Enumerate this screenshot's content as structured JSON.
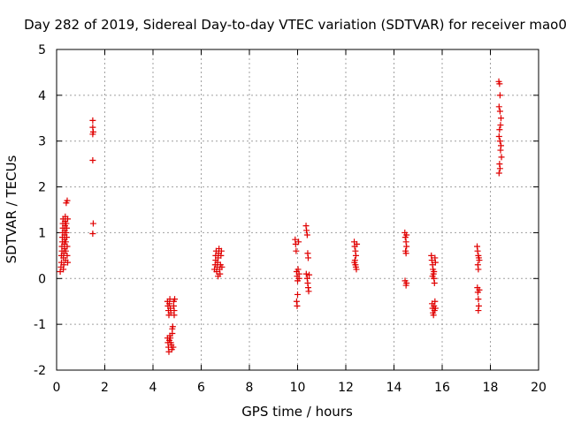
{
  "chart_data": {
    "type": "scatter",
    "title": "Day 282 of 2019, Sidereal Day-to-day VTEC variation (SDTVAR) for receiver mao0",
    "xlabel": "GPS time / hours",
    "ylabel": "SDTVAR / TECUs",
    "xlim": [
      0,
      20
    ],
    "ylim": [
      -2,
      5
    ],
    "xticks": [
      "0",
      "2",
      "4",
      "6",
      "8",
      "10",
      "12",
      "14",
      "16",
      "18",
      "20"
    ],
    "yticks": [
      "-2",
      "-1",
      "0",
      "1",
      "2",
      "3",
      "4",
      "5"
    ],
    "grid": true,
    "marker": "+",
    "color": "#e00000",
    "series": [
      {
        "name": "SDTVAR",
        "points": [
          [
            0.15,
            0.15
          ],
          [
            0.18,
            0.25
          ],
          [
            0.2,
            0.35
          ],
          [
            0.2,
            0.5
          ],
          [
            0.22,
            0.6
          ],
          [
            0.22,
            0.7
          ],
          [
            0.24,
            0.8
          ],
          [
            0.24,
            0.9
          ],
          [
            0.25,
            1.0
          ],
          [
            0.26,
            1.1
          ],
          [
            0.26,
            1.2
          ],
          [
            0.27,
            1.3
          ],
          [
            0.28,
            0.45
          ],
          [
            0.28,
            0.2
          ],
          [
            0.3,
            0.3
          ],
          [
            0.3,
            0.55
          ],
          [
            0.32,
            0.65
          ],
          [
            0.32,
            0.75
          ],
          [
            0.33,
            0.85
          ],
          [
            0.33,
            0.95
          ],
          [
            0.34,
            1.05
          ],
          [
            0.35,
            1.15
          ],
          [
            0.35,
            1.25
          ],
          [
            0.36,
            1.35
          ],
          [
            0.37,
            0.4
          ],
          [
            0.38,
            0.6
          ],
          [
            0.38,
            0.8
          ],
          [
            0.4,
            1.0
          ],
          [
            0.4,
            1.2
          ],
          [
            0.42,
            0.9
          ],
          [
            0.42,
            1.1
          ],
          [
            0.44,
            0.5
          ],
          [
            0.44,
            0.7
          ],
          [
            0.46,
            1.3
          ],
          [
            0.46,
            0.35
          ],
          [
            0.4,
            1.65
          ],
          [
            0.44,
            1.7
          ],
          [
            1.5,
            3.45
          ],
          [
            1.5,
            3.3
          ],
          [
            1.52,
            3.2
          ],
          [
            1.5,
            3.15
          ],
          [
            1.5,
            2.58
          ],
          [
            1.52,
            1.2
          ],
          [
            1.5,
            0.98
          ],
          [
            4.6,
            -1.3
          ],
          [
            4.62,
            -1.4
          ],
          [
            4.64,
            -1.5
          ],
          [
            4.66,
            -1.6
          ],
          [
            4.68,
            -1.35
          ],
          [
            4.7,
            -1.25
          ],
          [
            4.6,
            -0.5
          ],
          [
            4.62,
            -0.6
          ],
          [
            4.64,
            -0.7
          ],
          [
            4.66,
            -0.8
          ],
          [
            4.68,
            -0.55
          ],
          [
            4.7,
            -0.45
          ],
          [
            4.72,
            -0.65
          ],
          [
            4.74,
            -0.75
          ],
          [
            4.76,
            -1.45
          ],
          [
            4.78,
            -1.55
          ],
          [
            4.8,
            -1.2
          ],
          [
            4.8,
            -1.1
          ],
          [
            4.82,
            -1.05
          ],
          [
            4.84,
            -1.5
          ],
          [
            4.86,
            -0.5
          ],
          [
            4.86,
            -0.6
          ],
          [
            4.88,
            -0.7
          ],
          [
            4.88,
            -0.8
          ],
          [
            4.9,
            -0.45
          ],
          [
            4.72,
            -1.3
          ],
          [
            4.74,
            -1.4
          ],
          [
            6.55,
            0.2
          ],
          [
            6.58,
            0.3
          ],
          [
            6.6,
            0.4
          ],
          [
            6.6,
            0.5
          ],
          [
            6.62,
            0.6
          ],
          [
            6.64,
            0.15
          ],
          [
            6.66,
            0.25
          ],
          [
            6.68,
            0.35
          ],
          [
            6.7,
            0.45
          ],
          [
            6.72,
            0.55
          ],
          [
            6.74,
            0.65
          ],
          [
            6.76,
            0.2
          ],
          [
            6.78,
            0.1
          ],
          [
            6.8,
            0.3
          ],
          [
            6.82,
            0.5
          ],
          [
            6.84,
            0.6
          ],
          [
            6.86,
            0.25
          ],
          [
            6.7,
            0.05
          ],
          [
            9.9,
            0.85
          ],
          [
            9.92,
            0.75
          ],
          [
            9.94,
            0.6
          ],
          [
            9.96,
            0.15
          ],
          [
            9.98,
            0.05
          ],
          [
            10.0,
            -0.05
          ],
          [
            10.02,
            0.2
          ],
          [
            10.04,
            0.8
          ],
          [
            9.96,
            -0.5
          ],
          [
            9.98,
            -0.6
          ],
          [
            10.0,
            -0.35
          ],
          [
            10.06,
            0.1
          ],
          [
            10.06,
            0.0
          ],
          [
            10.35,
            1.15
          ],
          [
            10.37,
            1.05
          ],
          [
            10.4,
            0.95
          ],
          [
            10.42,
            0.55
          ],
          [
            10.44,
            0.45
          ],
          [
            10.36,
            0.1
          ],
          [
            10.4,
            0.0
          ],
          [
            10.42,
            -0.1
          ],
          [
            10.44,
            -0.2
          ],
          [
            10.46,
            -0.28
          ],
          [
            10.48,
            0.08
          ],
          [
            12.35,
            0.8
          ],
          [
            12.37,
            0.7
          ],
          [
            12.4,
            0.6
          ],
          [
            12.42,
            0.5
          ],
          [
            12.38,
            0.4
          ],
          [
            12.4,
            0.3
          ],
          [
            12.44,
            0.2
          ],
          [
            12.46,
            0.75
          ],
          [
            12.36,
            0.35
          ],
          [
            12.42,
            0.25
          ],
          [
            14.45,
            1.0
          ],
          [
            14.47,
            0.9
          ],
          [
            14.5,
            0.8
          ],
          [
            14.52,
            0.7
          ],
          [
            14.48,
            0.6
          ],
          [
            14.5,
            0.55
          ],
          [
            14.52,
            0.95
          ],
          [
            14.46,
            -0.05
          ],
          [
            14.5,
            -0.15
          ],
          [
            14.52,
            -0.1
          ],
          [
            15.55,
            0.5
          ],
          [
            15.57,
            0.4
          ],
          [
            15.6,
            0.3
          ],
          [
            15.62,
            0.2
          ],
          [
            15.64,
            0.1
          ],
          [
            15.66,
            0.0
          ],
          [
            15.68,
            -0.1
          ],
          [
            15.7,
            0.45
          ],
          [
            15.72,
            0.35
          ],
          [
            15.58,
            -0.55
          ],
          [
            15.6,
            -0.65
          ],
          [
            15.62,
            -0.75
          ],
          [
            15.64,
            -0.8
          ],
          [
            15.66,
            -0.6
          ],
          [
            15.68,
            -0.7
          ],
          [
            15.7,
            -0.5
          ],
          [
            15.72,
            -0.65
          ],
          [
            15.6,
            0.05
          ],
          [
            15.66,
            0.15
          ],
          [
            17.45,
            0.7
          ],
          [
            17.47,
            0.6
          ],
          [
            17.5,
            0.5
          ],
          [
            17.52,
            0.45
          ],
          [
            17.48,
            0.3
          ],
          [
            17.5,
            0.2
          ],
          [
            17.46,
            -0.2
          ],
          [
            17.48,
            -0.3
          ],
          [
            17.5,
            -0.45
          ],
          [
            17.52,
            -0.6
          ],
          [
            17.5,
            -0.7
          ],
          [
            17.54,
            -0.25
          ],
          [
            17.54,
            0.4
          ],
          [
            18.35,
            4.3
          ],
          [
            18.38,
            4.25
          ],
          [
            18.4,
            4.0
          ],
          [
            18.36,
            3.75
          ],
          [
            18.4,
            3.65
          ],
          [
            18.42,
            3.35
          ],
          [
            18.38,
            3.25
          ],
          [
            18.36,
            3.1
          ],
          [
            18.4,
            3.0
          ],
          [
            18.44,
            2.9
          ],
          [
            18.46,
            2.65
          ],
          [
            18.38,
            2.5
          ],
          [
            18.4,
            2.4
          ],
          [
            18.36,
            2.3
          ],
          [
            18.42,
            2.8
          ],
          [
            18.44,
            3.5
          ]
        ]
      }
    ]
  }
}
